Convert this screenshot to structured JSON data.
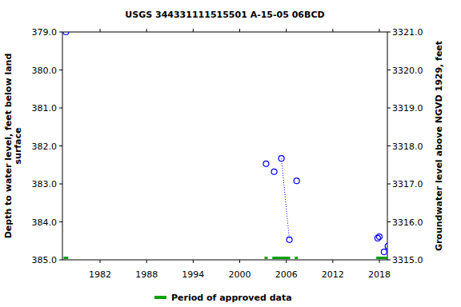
{
  "chart_data": {
    "type": "scatter",
    "title": "USGS 344331111515501 A-15-05 06BCD",
    "ylabel": [
      "Depth to water level, feet below land",
      "surface"
    ],
    "y2label": "Groundwater level above NGVD 1929, feet",
    "xlim": [
      1977.15,
      2019.03
    ],
    "xticks": [
      1982,
      1988,
      1994,
      2000,
      2006,
      2012,
      2018
    ],
    "ylim": [
      385,
      379
    ],
    "yticks": [
      {
        "value": 379,
        "label": "379.0"
      },
      {
        "value": 380,
        "label": "380.0"
      },
      {
        "value": 381,
        "label": "381.0"
      },
      {
        "value": 382,
        "label": "382.0"
      },
      {
        "value": 383,
        "label": "383.0"
      },
      {
        "value": 384,
        "label": "384.0"
      },
      {
        "value": 385,
        "label": "385.0"
      }
    ],
    "y2lim": [
      3315,
      3321
    ],
    "y2ticks": [
      {
        "value": 3315,
        "label": "3315.0"
      },
      {
        "value": 3316,
        "label": "3316.0"
      },
      {
        "value": 3317,
        "label": "3317.0"
      },
      {
        "value": 3318,
        "label": "3318.0"
      },
      {
        "value": 3319,
        "label": "3319.0"
      },
      {
        "value": 3320,
        "label": "3320.0"
      },
      {
        "value": 3321,
        "label": "3321.0"
      }
    ],
    "series": [
      {
        "type": "scatter",
        "marker": "circle",
        "color": "#0000ff",
        "x": [
          1977.6,
          2003.4,
          2004.44,
          2005.37,
          2006.4,
          2007.34,
          2017.78,
          2017.99,
          2018.6,
          2019.1
        ],
        "values": [
          379.0,
          382.47,
          382.68,
          382.33,
          384.47,
          382.92,
          384.43,
          384.39,
          384.79,
          384.64
        ]
      },
      {
        "type": "line",
        "line_style": "dotted",
        "color": "#0000ff",
        "x": [
          2005.37,
          2006.4
        ],
        "values": [
          382.33,
          384.47
        ]
      },
      {
        "type": "period",
        "name": "Period of approved data",
        "color": "#00a000",
        "x_start": [
          1977.3,
          2003.2,
          2004.2,
          2007.1,
          2017.6
        ],
        "x_end": [
          1977.9,
          2003.6,
          2006.5,
          2007.5,
          2019.1
        ]
      }
    ]
  }
}
